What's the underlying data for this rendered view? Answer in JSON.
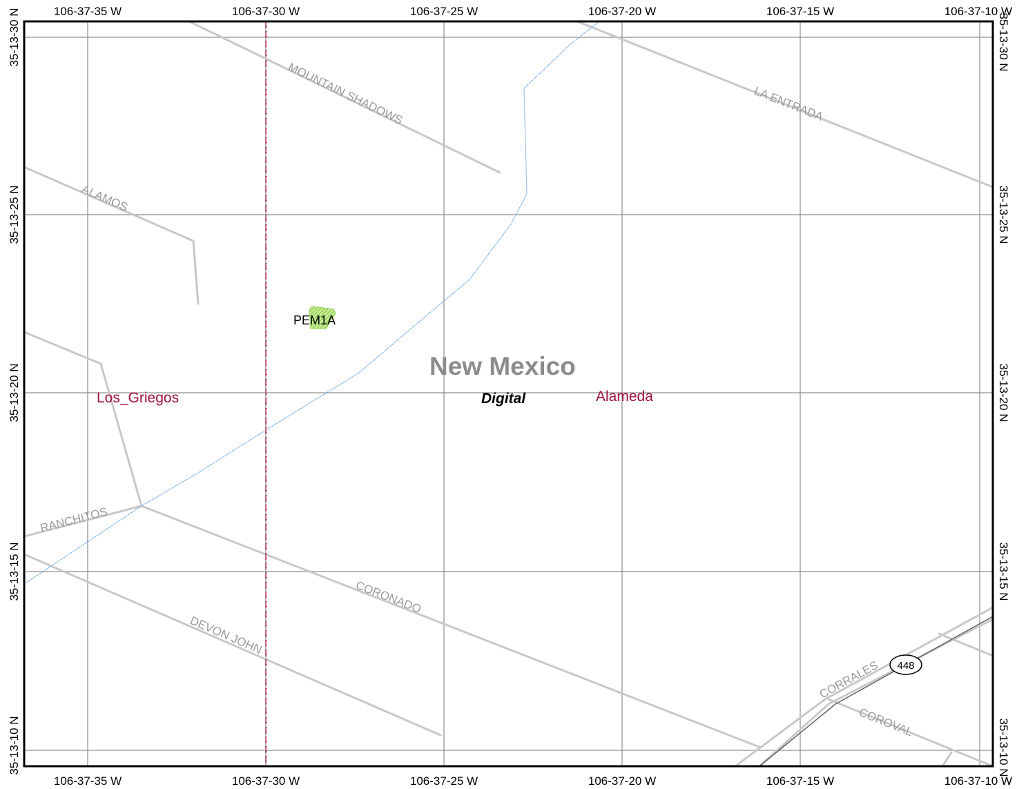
{
  "colors": {
    "grid": "#8c8c8c",
    "road": "#c8c8c8",
    "road_label": "#9a9a9a",
    "stream": "#7aaee0",
    "boundary": "#c0405a",
    "place": "#a01040",
    "state_label": "#8c8c8c",
    "wetland": "#8fd14f",
    "frame": "#000000"
  },
  "grid": {
    "longitudes_top": [
      "106-37-35 W",
      "106-37-30 W",
      "106-37-25 W",
      "106-37-20 W",
      "106-37-15 W",
      "106-37-10 W"
    ],
    "longitudes_bottom": [
      "106-37-35 W",
      "106-37-30 W",
      "106-37-25 W",
      "106-37-20 W",
      "106-37-15 W",
      "106-37-10 W"
    ],
    "latitudes_left": [
      "35-13-30 N",
      "35-13-25 N",
      "35-13-20 N",
      "35-13-15 N",
      "35-13-10 N"
    ],
    "latitudes_right": [
      "35-13-30 N",
      "35-13-25 N",
      "35-13-20 N",
      "35-13-15 N",
      "35-13-10 N"
    ]
  },
  "roads": {
    "mountain_shadows": "MOUNTAIN SHADOWS",
    "la_entrada": "LA ENTRADA",
    "alamos": "ALAMOS",
    "ranchitos": "RANCHITOS",
    "coronado": "CORONADO",
    "devon_john": "DEVON JOHN",
    "corrales": "CORRALES",
    "coroval": "COROVAL",
    "route_shield": "448"
  },
  "labels": {
    "state": "New Mexico",
    "source": "Digital",
    "place_west": "Los_Griegos",
    "place_east": "Alameda",
    "wetland": "PEM1A"
  },
  "icons": {
    "route_shield": "state-route-shield-icon",
    "wetland": "wetland-polygon-icon"
  }
}
